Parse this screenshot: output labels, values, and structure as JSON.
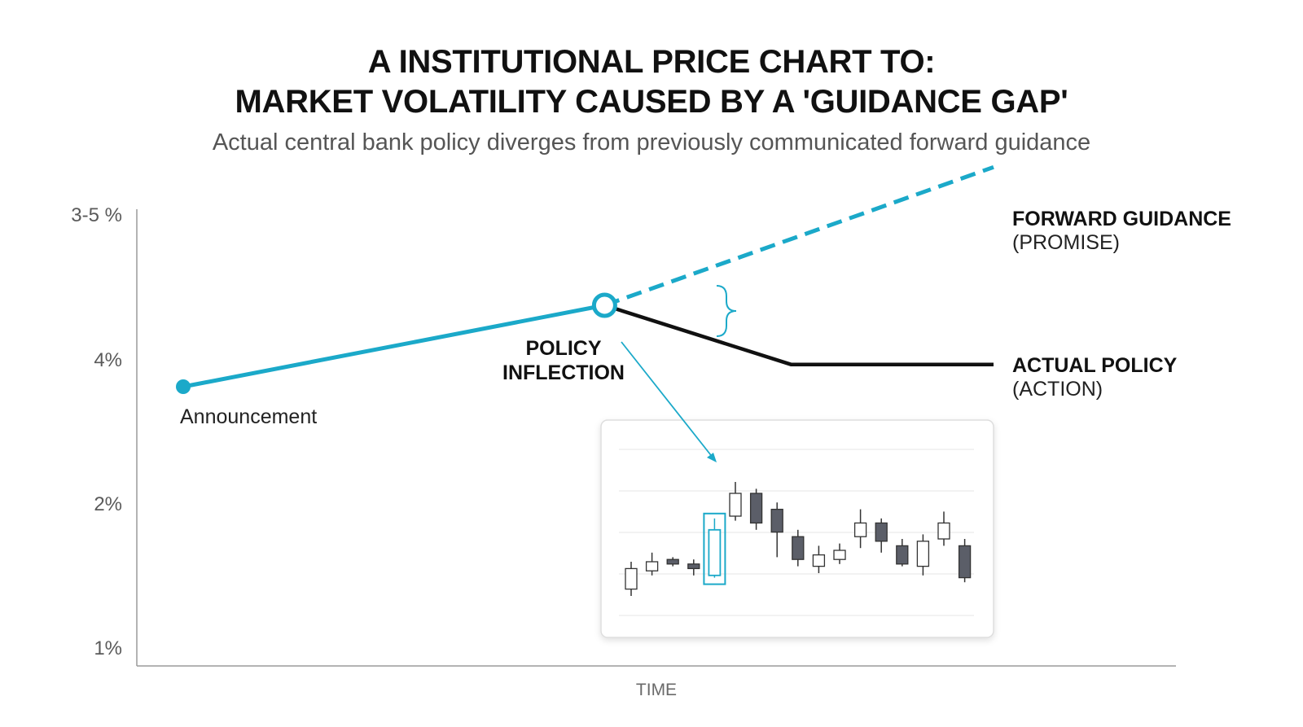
{
  "header": {
    "title_line1": "A INSTITUTIONAL PRICE CHART TO:",
    "title_line2": "MARKET VOLATILITY CAUSED BY A 'GUIDANCE GAP'",
    "subtitle": "Actual central bank policy diverges from previously communicated forward guidance"
  },
  "chart_data": {
    "type": "line",
    "title": "A INSTITUTIONAL PRICE CHART TO: MARKET VOLATILITY CAUSED BY A 'GUIDANCE GAP'",
    "subtitle": "Actual central bank policy diverges from previously communicated forward guidance",
    "xlabel": "TIME",
    "ylabel": "",
    "y_tick_labels": [
      "3-5 %",
      "4%",
      "2%",
      "1%"
    ],
    "grid": false,
    "colors": {
      "guidance": "#1ba9c9",
      "actual": "#111111",
      "axis": "#9a9a9a",
      "bear_candle": "#5b5e68"
    },
    "series": [
      {
        "name": "FORWARD GUIDANCE (PROMISE)",
        "style": "dashed",
        "points": [
          {
            "x": 0.52,
            "y": 3.9
          },
          {
            "x": 1.0,
            "y": 4.46
          }
        ]
      },
      {
        "name": "ACTUAL POLICY (ACTION)",
        "style": "solid",
        "points": [
          {
            "x": 0.52,
            "y": 3.9
          },
          {
            "x": 0.75,
            "y": 3.66
          },
          {
            "x": 1.0,
            "y": 3.66
          }
        ]
      },
      {
        "name": "Announcement path",
        "style": "solid",
        "points": [
          {
            "x": 0.0,
            "y": 3.57
          },
          {
            "x": 0.52,
            "y": 3.9
          }
        ]
      }
    ],
    "annotations": {
      "start_label": "Announcement",
      "inflection_label_line1": "POLICY",
      "inflection_label_line2": "INFLECTION",
      "guidance_label": "FORWARD GUIDANCE",
      "guidance_sub": "(PROMISE)",
      "actual_label": "ACTUAL POLICY",
      "actual_sub": "(ACTION)"
    },
    "inset_candles": {
      "type": "candlestick",
      "highlighted_index": 4,
      "candles": [
        {
          "o": 1.3,
          "c": 2.2,
          "h": 2.5,
          "l": 1.0
        },
        {
          "o": 2.1,
          "c": 2.5,
          "h": 2.9,
          "l": 1.9
        },
        {
          "o": 2.6,
          "c": 2.4,
          "h": 2.7,
          "l": 2.3
        },
        {
          "o": 2.4,
          "c": 2.2,
          "h": 2.6,
          "l": 1.9
        },
        {
          "o": 1.9,
          "c": 3.9,
          "h": 4.4,
          "l": 1.8
        },
        {
          "o": 4.5,
          "c": 5.5,
          "h": 6.0,
          "l": 4.3
        },
        {
          "o": 5.5,
          "c": 4.2,
          "h": 5.7,
          "l": 3.9
        },
        {
          "o": 4.8,
          "c": 3.8,
          "h": 5.1,
          "l": 2.7
        },
        {
          "o": 3.6,
          "c": 2.6,
          "h": 3.9,
          "l": 2.3
        },
        {
          "o": 2.3,
          "c": 2.8,
          "h": 3.2,
          "l": 2.0
        },
        {
          "o": 2.6,
          "c": 3.0,
          "h": 3.3,
          "l": 2.4
        },
        {
          "o": 3.6,
          "c": 4.2,
          "h": 4.8,
          "l": 3.1
        },
        {
          "o": 4.2,
          "c": 3.4,
          "h": 4.4,
          "l": 2.9
        },
        {
          "o": 3.2,
          "c": 2.4,
          "h": 3.5,
          "l": 2.3
        },
        {
          "o": 2.3,
          "c": 3.4,
          "h": 3.7,
          "l": 1.9
        },
        {
          "o": 3.5,
          "c": 4.2,
          "h": 4.7,
          "l": 3.2
        },
        {
          "o": 3.2,
          "c": 1.8,
          "h": 3.5,
          "l": 1.6
        }
      ]
    }
  }
}
